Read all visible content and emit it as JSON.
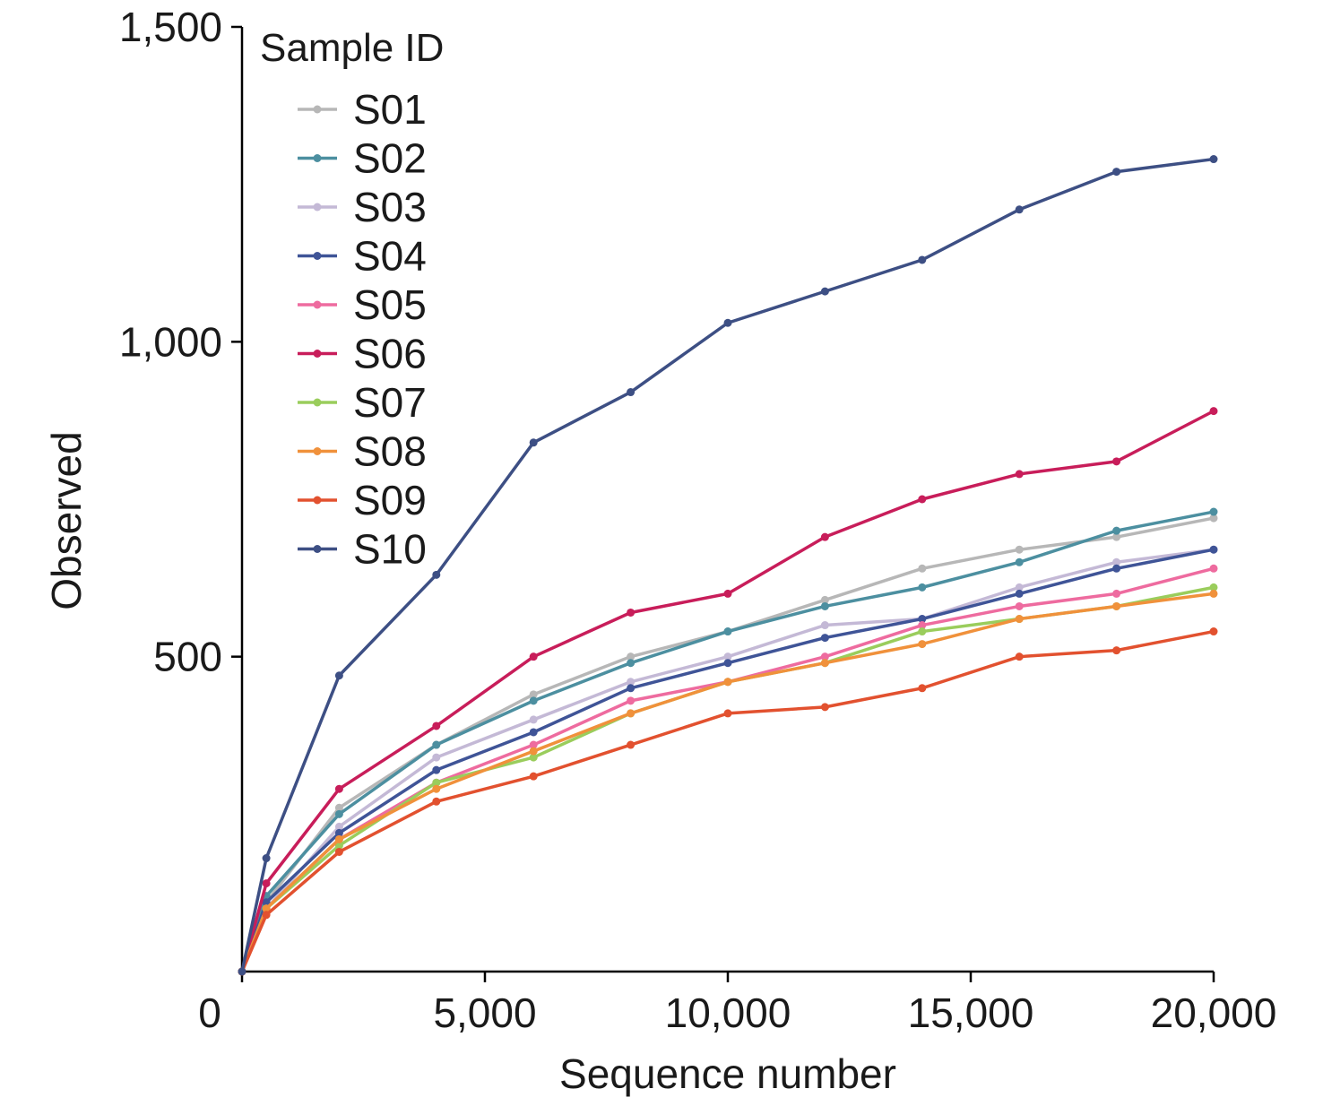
{
  "chart_data": {
    "type": "line",
    "xlabel": "Sequence number",
    "ylabel": "Observed",
    "xlim": [
      0,
      20000
    ],
    "ylim": [
      0,
      1500
    ],
    "x_ticks": [
      0,
      5000,
      10000,
      15000,
      20000
    ],
    "x_tick_labels": [
      "0",
      "5,000",
      "10,000",
      "15,000",
      "20,000"
    ],
    "y_ticks": [
      500,
      1000,
      1500
    ],
    "y_tick_labels": [
      "500",
      "1,000",
      "1,500"
    ],
    "grid": false,
    "legend": {
      "title": "Sample ID",
      "position": "top-left"
    },
    "x": [
      0,
      500,
      2000,
      4000,
      6000,
      8000,
      10000,
      12000,
      14000,
      16000,
      18000,
      20000
    ],
    "series": [
      {
        "name": "S01",
        "color": "#b7b7b7",
        "values": [
          0,
          110,
          260,
          360,
          440,
          500,
          540,
          590,
          640,
          670,
          690,
          720
        ]
      },
      {
        "name": "S02",
        "color": "#4c8fa0",
        "values": [
          0,
          120,
          250,
          360,
          430,
          490,
          540,
          580,
          610,
          650,
          700,
          730
        ]
      },
      {
        "name": "S03",
        "color": "#c4b9d6",
        "values": [
          0,
          100,
          230,
          340,
          400,
          460,
          500,
          550,
          560,
          610,
          650,
          670
        ]
      },
      {
        "name": "S04",
        "color": "#3f5497",
        "values": [
          0,
          110,
          220,
          320,
          380,
          450,
          490,
          530,
          560,
          600,
          640,
          670
        ]
      },
      {
        "name": "S05",
        "color": "#ee6b9f",
        "values": [
          0,
          100,
          210,
          300,
          360,
          430,
          460,
          500,
          550,
          580,
          600,
          640
        ]
      },
      {
        "name": "S06",
        "color": "#c81d5a",
        "values": [
          0,
          140,
          290,
          390,
          500,
          570,
          600,
          690,
          750,
          790,
          810,
          890
        ]
      },
      {
        "name": "S07",
        "color": "#9acd5c",
        "values": [
          0,
          100,
          200,
          300,
          340,
          410,
          460,
          490,
          540,
          560,
          580,
          610
        ]
      },
      {
        "name": "S08",
        "color": "#f0913b",
        "values": [
          0,
          100,
          210,
          290,
          350,
          410,
          460,
          490,
          520,
          560,
          580,
          600
        ]
      },
      {
        "name": "S09",
        "color": "#e2512f",
        "values": [
          0,
          90,
          190,
          270,
          310,
          360,
          410,
          420,
          450,
          500,
          510,
          540
        ]
      },
      {
        "name": "S10",
        "color": "#3d4f84",
        "values": [
          0,
          180,
          470,
          630,
          840,
          920,
          1030,
          1080,
          1130,
          1210,
          1270,
          1290
        ]
      }
    ]
  }
}
